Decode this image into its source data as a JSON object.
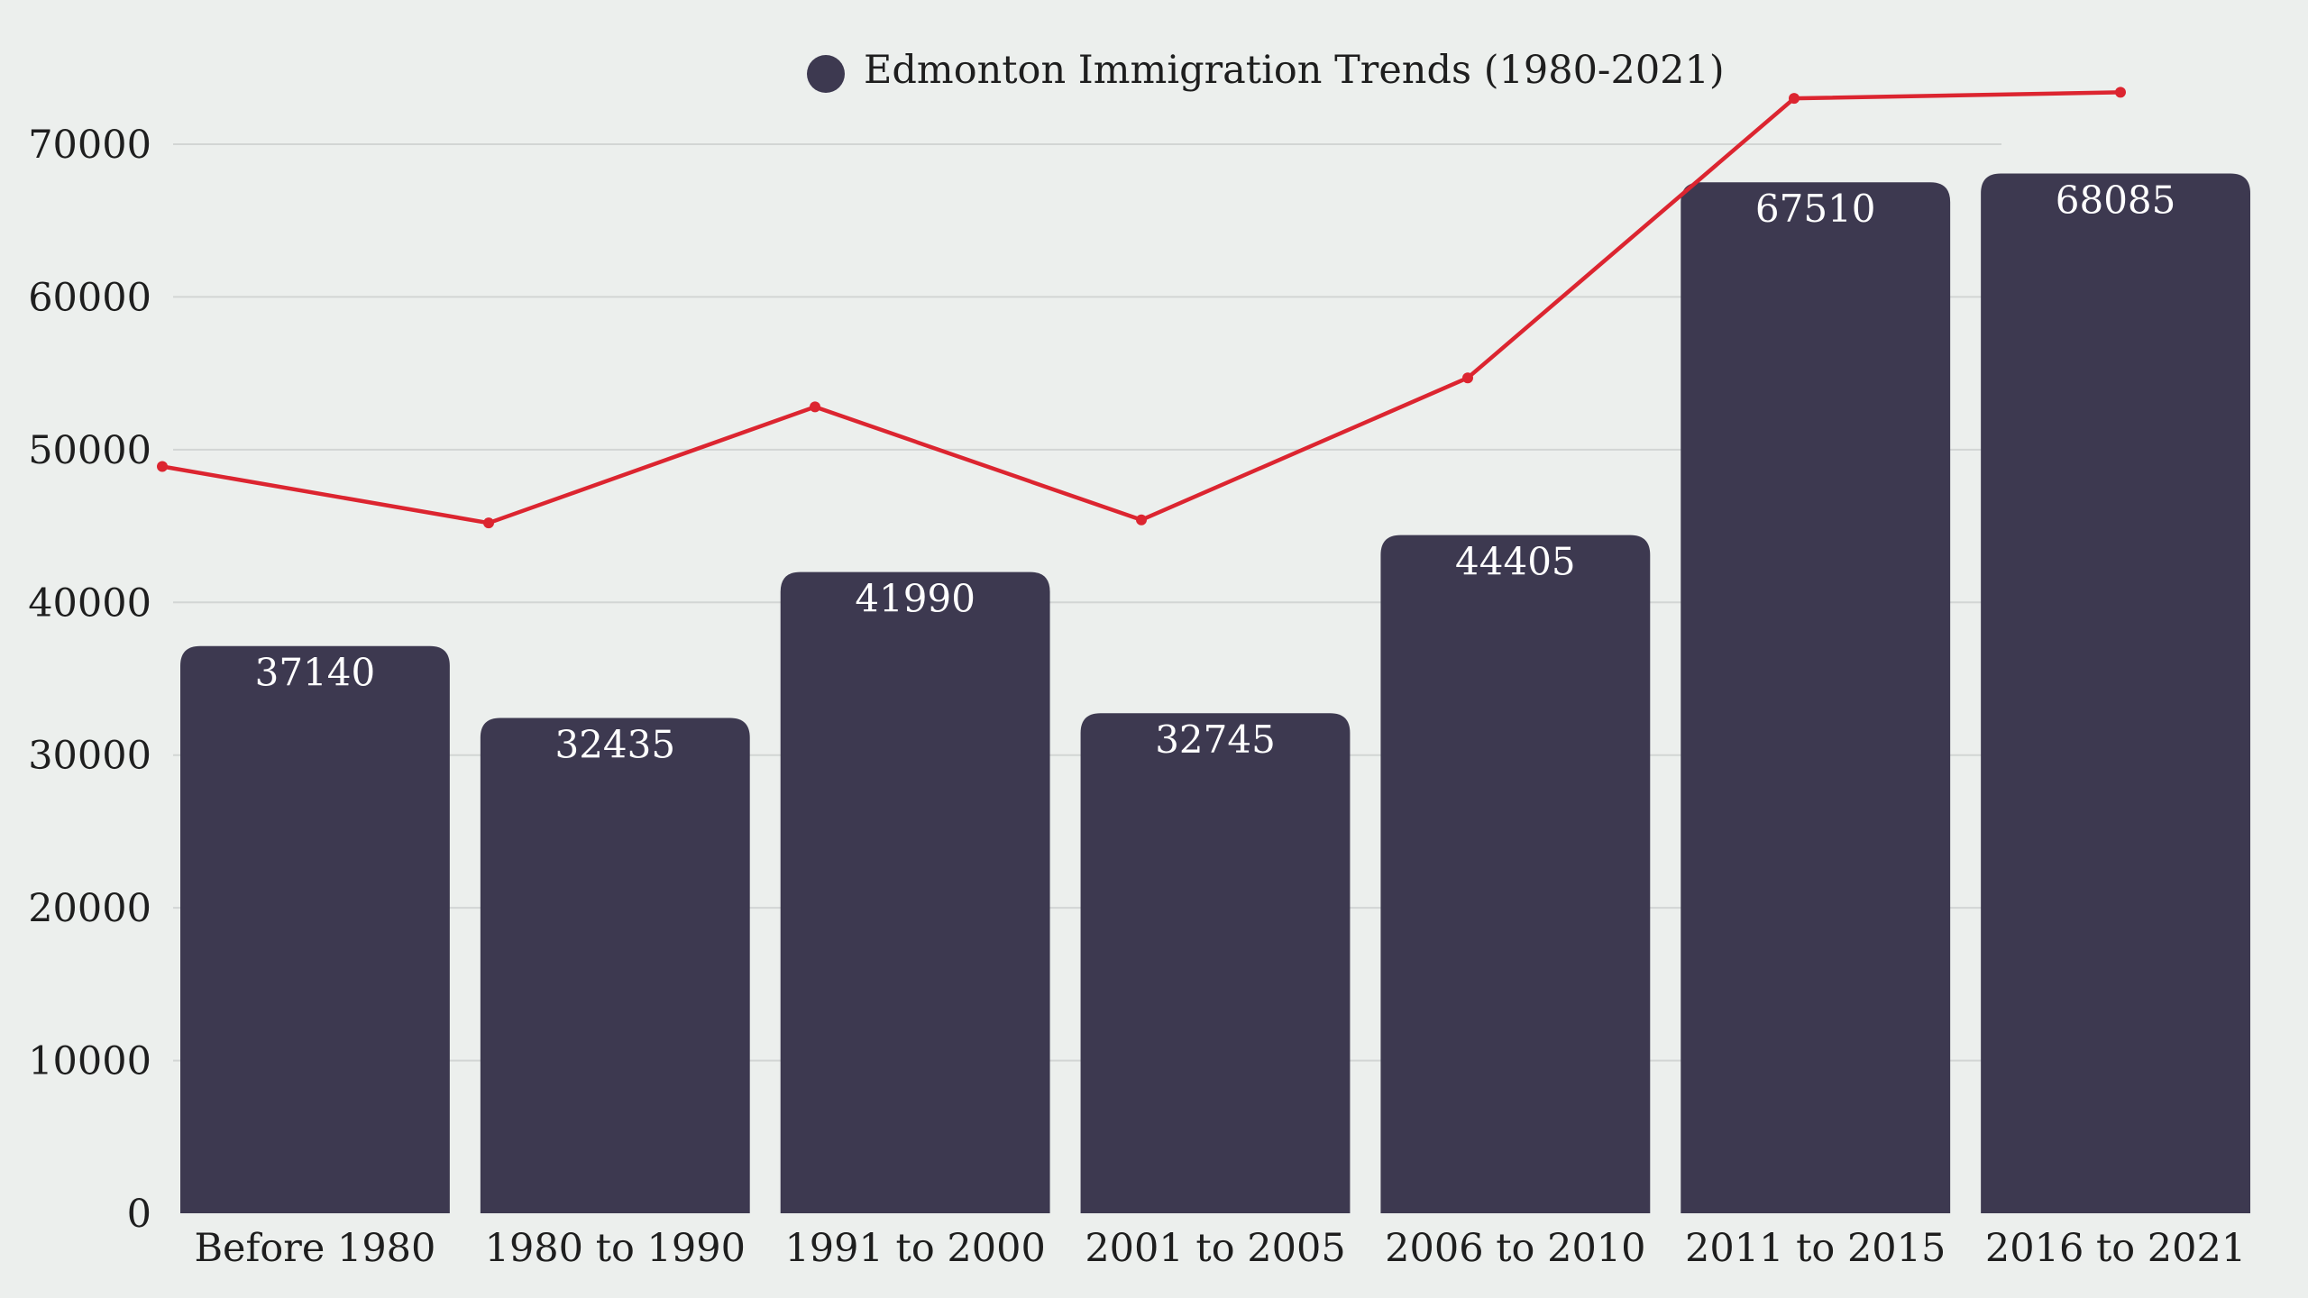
{
  "chart_data": {
    "type": "bar",
    "legend": {
      "label": "Edmonton Immigration Trends (1980-2021)",
      "position": "top-center"
    },
    "categories": [
      "Before 1980",
      "1980 to 1990",
      "1991 to 2000",
      "2001 to 2005",
      "2006 to 2010",
      "2011 to 2015",
      "2016 to 2021"
    ],
    "series": [
      {
        "name": "Edmonton Immigration Trends (1980-2021)",
        "type": "bar",
        "values": [
          37140,
          32435,
          41990,
          32745,
          44405,
          67510,
          68085
        ],
        "data_labels": [
          "37140",
          "32435",
          "41990",
          "32745",
          "44405",
          "67510",
          "68085"
        ],
        "color": "#3D3950"
      },
      {
        "type": "line",
        "values": [
          48900,
          45200,
          52800,
          45400,
          54700,
          73000,
          73400
        ],
        "color": "#DC2530"
      }
    ],
    "ylim": [
      0,
      70000
    ],
    "yticks": [
      "0",
      "10000",
      "20000",
      "30000",
      "40000",
      "50000",
      "60000",
      "70000"
    ],
    "grid": true,
    "colors": {
      "background": "#ECEFED",
      "grid": "#D2D5D4",
      "bar": "#3D3950",
      "line": "#DC2530",
      "text": "#1E1E1E",
      "bar_label": "#FFFFFF"
    }
  }
}
